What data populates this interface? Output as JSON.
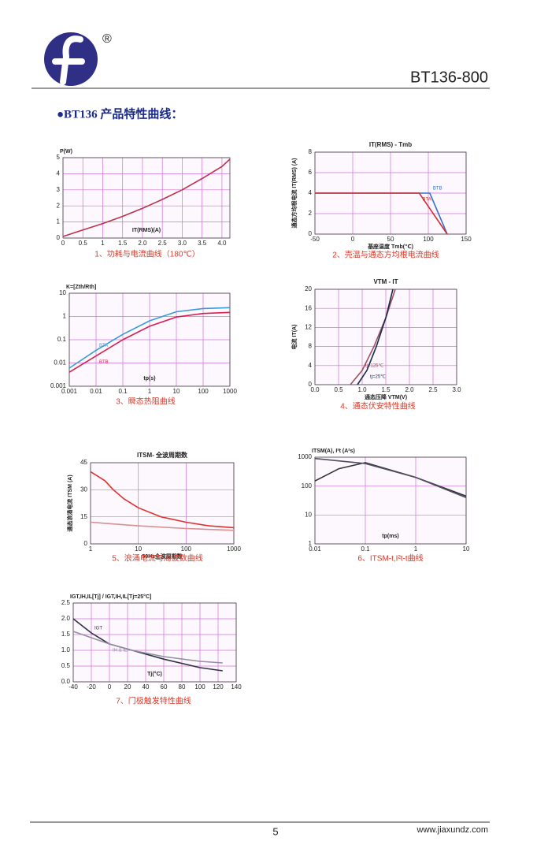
{
  "header": {
    "registered": "®",
    "part_number": "BT136-800"
  },
  "section_title": "●BT136 产品特性曲线：",
  "chart_data": [
    {
      "type": "line",
      "ylabel": "P(W)",
      "xlabel": "IT(RMS)(A)",
      "caption": "1、功耗与电流曲线（180℃）",
      "xlim": [
        0,
        4.2
      ],
      "xticks": [
        0,
        0.5,
        1,
        1.5,
        {
          "value": 2,
          "label": "2.0"
        },
        2.5,
        {
          "value": 3,
          "label": "3.0"
        },
        3.5,
        {
          "value": 4,
          "label": "4.0"
        }
      ],
      "ylim": [
        0,
        5
      ],
      "yticks": [
        0,
        1,
        2,
        3,
        4,
        5
      ],
      "grid": true,
      "series": [
        {
          "color": "#c0304a",
          "x": [
            0,
            0.5,
            1,
            1.5,
            2,
            2.5,
            3,
            3.5,
            4,
            4.2
          ],
          "values": [
            0.1,
            0.5,
            0.9,
            1.35,
            1.85,
            2.4,
            3.0,
            3.7,
            4.45,
            4.9
          ]
        }
      ]
    },
    {
      "type": "line",
      "title": "IT(RMS) - Tmb",
      "ylabel": "通态方均根电流 IT(RMS) (A)",
      "xlabel": "基座温度 Tmb(℃)",
      "caption": "2、壳温与通态方均根电流曲线",
      "xlim": [
        -50,
        150
      ],
      "xticks": [
        -50,
        0,
        50,
        100,
        150
      ],
      "ylim": [
        0,
        8
      ],
      "yticks": [
        0,
        2,
        4,
        6,
        8
      ],
      "grid": true,
      "series": [
        {
          "name": "BTB",
          "color": "#3a6fc4",
          "x": [
            -50,
            102,
            125
          ],
          "values": [
            4,
            4,
            0
          ]
        },
        {
          "name": "BTA",
          "color": "#d03030",
          "x": [
            -50,
            88,
            125
          ],
          "values": [
            4,
            4,
            0
          ]
        }
      ]
    },
    {
      "type": "line",
      "ylabel": "K=[Zth/Rth]",
      "xlabel": "tp(s)",
      "caption": "3、瞬态热阻曲线",
      "log_x": true,
      "log_y": true,
      "xlim": [
        0.001,
        1000
      ],
      "xticks": [
        0.001,
        0.01,
        0.1,
        1,
        10,
        100,
        1000
      ],
      "ylim": [
        0.001,
        10
      ],
      "yticks": [
        0.001,
        0.01,
        0.1,
        1,
        10
      ],
      "grid": true,
      "series": [
        {
          "name": "BTA",
          "color": "#3a9ad8",
          "x": [
            0.001,
            0.01,
            0.1,
            1,
            10,
            100,
            1000
          ],
          "values": [
            0.006,
            0.035,
            0.17,
            0.65,
            1.6,
            2.2,
            2.4
          ]
        },
        {
          "name": "BTB",
          "color": "#d82050",
          "x": [
            0.001,
            0.01,
            0.1,
            1,
            10,
            100,
            1000
          ],
          "values": [
            0.004,
            0.02,
            0.1,
            0.38,
            0.95,
            1.35,
            1.5
          ]
        }
      ]
    },
    {
      "type": "line",
      "title": "VTM - IT",
      "ylabel": "电流 IT(A)",
      "xlabel": "通态压降 VTM(V)",
      "caption": "4、通态伏安特性曲线",
      "xlim": [
        0,
        3
      ],
      "xticks": [
        {
          "value": 0,
          "label": "0.0"
        },
        0.5,
        {
          "value": 1,
          "label": "1.0"
        },
        1.5,
        {
          "value": 2,
          "label": "2.0"
        },
        2.5,
        {
          "value": 3,
          "label": "3.0"
        }
      ],
      "ylim": [
        0,
        20
      ],
      "yticks": [
        0,
        4,
        8,
        12,
        16,
        20
      ],
      "grid": true,
      "series": [
        {
          "name": "tj=125℃",
          "color": "#a05060",
          "x": [
            0.75,
            1.0,
            1.25,
            1.5,
            1.7
          ],
          "values": [
            0,
            3,
            8,
            14,
            20
          ]
        },
        {
          "name": "tj=25℃",
          "color": "#1a2a50",
          "x": [
            0.9,
            1.1,
            1.3,
            1.5,
            1.65
          ],
          "values": [
            0,
            3,
            8,
            14,
            20
          ]
        }
      ]
    },
    {
      "type": "line",
      "title": "ITSM- 全波周期数",
      "ylabel": "通态浪涌电流 ITSM (A)",
      "xlabel": "50Hz全波周期数",
      "caption": "5、浪涌电流与周波数曲线",
      "log_x": true,
      "xlim": [
        1,
        1000
      ],
      "xticks": [
        1,
        10,
        100,
        1000
      ],
      "ylim": [
        0,
        45
      ],
      "yticks": [
        0,
        15,
        30,
        45
      ],
      "grid": true,
      "series": [
        {
          "color": "#e03030",
          "x": [
            1,
            2,
            3,
            5,
            10,
            30,
            100,
            300,
            1000
          ],
          "values": [
            40,
            35,
            30,
            25,
            20,
            15,
            12,
            10,
            9
          ]
        },
        {
          "color": "#d89090",
          "x": [
            1,
            10,
            100,
            1000
          ],
          "values": [
            12,
            10,
            8.5,
            7.5
          ]
        }
      ]
    },
    {
      "type": "line",
      "ylabel": "ITSM(A), I²t (A²s)",
      "xlabel": "tp(ms)",
      "caption": "6、ITSM-t,I²t-t曲线",
      "log_x": true,
      "log_y": true,
      "xlim": [
        0.01,
        10
      ],
      "xticks": [
        0.01,
        0.1,
        1,
        10
      ],
      "ylim": [
        1,
        1000
      ],
      "yticks": [
        1,
        10,
        100,
        1000
      ],
      "grid": true,
      "series": [
        {
          "color": "#303040",
          "x": [
            0.01,
            0.03,
            0.1,
            1,
            10
          ],
          "values": [
            150,
            400,
            650,
            200,
            45
          ]
        },
        {
          "color": "#505060",
          "x": [
            0.01,
            0.1,
            1,
            10
          ],
          "values": [
            900,
            600,
            200,
            40
          ]
        }
      ]
    },
    {
      "type": "line",
      "ylabel": "IGT,IH,IL[Tj] / IGT,IH,IL[Tj=25°C]",
      "xlabel": "Tj(°C)",
      "caption": "7、门极触发特性曲线",
      "xlim": [
        -40,
        140
      ],
      "xticks": [
        -40,
        -20,
        0,
        20,
        40,
        60,
        80,
        100,
        120,
        140
      ],
      "ylim": [
        0,
        2.5
      ],
      "yticks": [
        {
          "value": 0,
          "label": "0.0"
        },
        0.5,
        {
          "value": 1,
          "label": "1.0"
        },
        1.5,
        {
          "value": 2,
          "label": "2.0"
        },
        2.5
      ],
      "grid": true,
      "series": [
        {
          "name": "IGT",
          "color": "#303048",
          "x": [
            -40,
            -20,
            0,
            25,
            60,
            100,
            125
          ],
          "values": [
            2.0,
            1.55,
            1.2,
            1.0,
            0.72,
            0.45,
            0.35
          ]
        },
        {
          "name": "IH & IL",
          "color": "#9090a0",
          "x": [
            -40,
            0,
            25,
            60,
            100,
            125
          ],
          "values": [
            1.6,
            1.2,
            1.0,
            0.8,
            0.65,
            0.6
          ]
        }
      ]
    }
  ],
  "footer": {
    "page": "5",
    "site": "www.jiaxundz.com"
  }
}
